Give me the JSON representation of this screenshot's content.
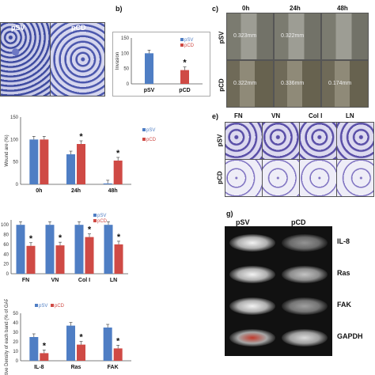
{
  "panels": {
    "a": {
      "left_label": "pSV",
      "right_label": "pCD"
    },
    "b": {
      "label": "b)",
      "ylabel": "Invasion",
      "ticks": [
        "150",
        "100",
        "50",
        "0"
      ]
    },
    "c": {
      "label": "c)",
      "cols": [
        "0h",
        "24h",
        "48h"
      ],
      "rows": [
        "pSV",
        "pCD"
      ],
      "measures": [
        [
          "0.323mm",
          "0.322mm",
          ""
        ],
        [
          "0.322mm",
          "0.336mm",
          "0.174mm"
        ]
      ]
    },
    "d": {
      "ylabel": "Wound are (%)",
      "ticks": [
        "150",
        "100",
        "50",
        "0"
      ]
    },
    "e": {
      "label": "e)",
      "cols": [
        "FN",
        "VN",
        "Col I",
        "LN"
      ],
      "rows": [
        "pSV",
        "pCD"
      ]
    },
    "f": {
      "ticks": [
        "100",
        "80",
        "60",
        "40",
        "20",
        "0"
      ]
    },
    "g": {
      "label": "g)",
      "cols": [
        "pSV",
        "pCD"
      ],
      "rows": [
        "IL-8",
        "Ras",
        "FAK",
        "GAPDH"
      ]
    },
    "h": {
      "ylabel": "Relative Density of each band (% of GAPDH)",
      "ticks": [
        "50",
        "40",
        "30",
        "20",
        "10",
        "0"
      ]
    }
  },
  "colors": {
    "psv": "#4f7ec4",
    "pcd": "#cf4a45"
  },
  "chart_data": [
    {
      "type": "bar",
      "panel": "b",
      "categories": [
        "pSV",
        "pCD"
      ],
      "series": [
        {
          "name": "pSV",
          "values": [
            100,
            null
          ]
        },
        {
          "name": "pCD",
          "values": [
            null,
            45
          ]
        }
      ],
      "ylim": [
        0,
        150
      ],
      "ylabel": "Invasion",
      "legend": [
        "pSV",
        "pCD"
      ],
      "annotations": [
        "*"
      ]
    },
    {
      "type": "bar",
      "panel": "d",
      "categories": [
        "0h",
        "24h",
        "48h"
      ],
      "series": [
        {
          "name": "pSV",
          "values": [
            100,
            67,
            2
          ]
        },
        {
          "name": "pCD",
          "values": [
            100,
            90,
            53
          ]
        }
      ],
      "ylim": [
        0,
        150
      ],
      "ylabel": "Wound are (%)",
      "legend": [
        "pSV",
        "pCD"
      ],
      "annotations": [
        "*",
        "*"
      ]
    },
    {
      "type": "bar",
      "panel": "f",
      "categories": [
        "FN",
        "VN",
        "Col I",
        "LN"
      ],
      "series": [
        {
          "name": "pSV",
          "values": [
            100,
            100,
            100,
            100
          ]
        },
        {
          "name": "pCD",
          "values": [
            57,
            58,
            75,
            60
          ]
        }
      ],
      "ylim": [
        0,
        110
      ],
      "legend": [
        "pSV",
        "pCD"
      ],
      "annotations": [
        "*",
        "*",
        "*",
        "*"
      ]
    },
    {
      "type": "bar",
      "panel": "h",
      "categories": [
        "IL-8",
        "Ras",
        "FAK"
      ],
      "series": [
        {
          "name": "pSV",
          "values": [
            25,
            37,
            35
          ]
        },
        {
          "name": "pCD",
          "values": [
            8,
            17,
            13
          ]
        }
      ],
      "ylim": [
        0,
        50
      ],
      "ylabel": "Relative Density of each band (% of GAPDH)",
      "legend": [
        "pSV",
        "pCD"
      ],
      "annotations": [
        "*",
        "*",
        "*"
      ]
    }
  ]
}
